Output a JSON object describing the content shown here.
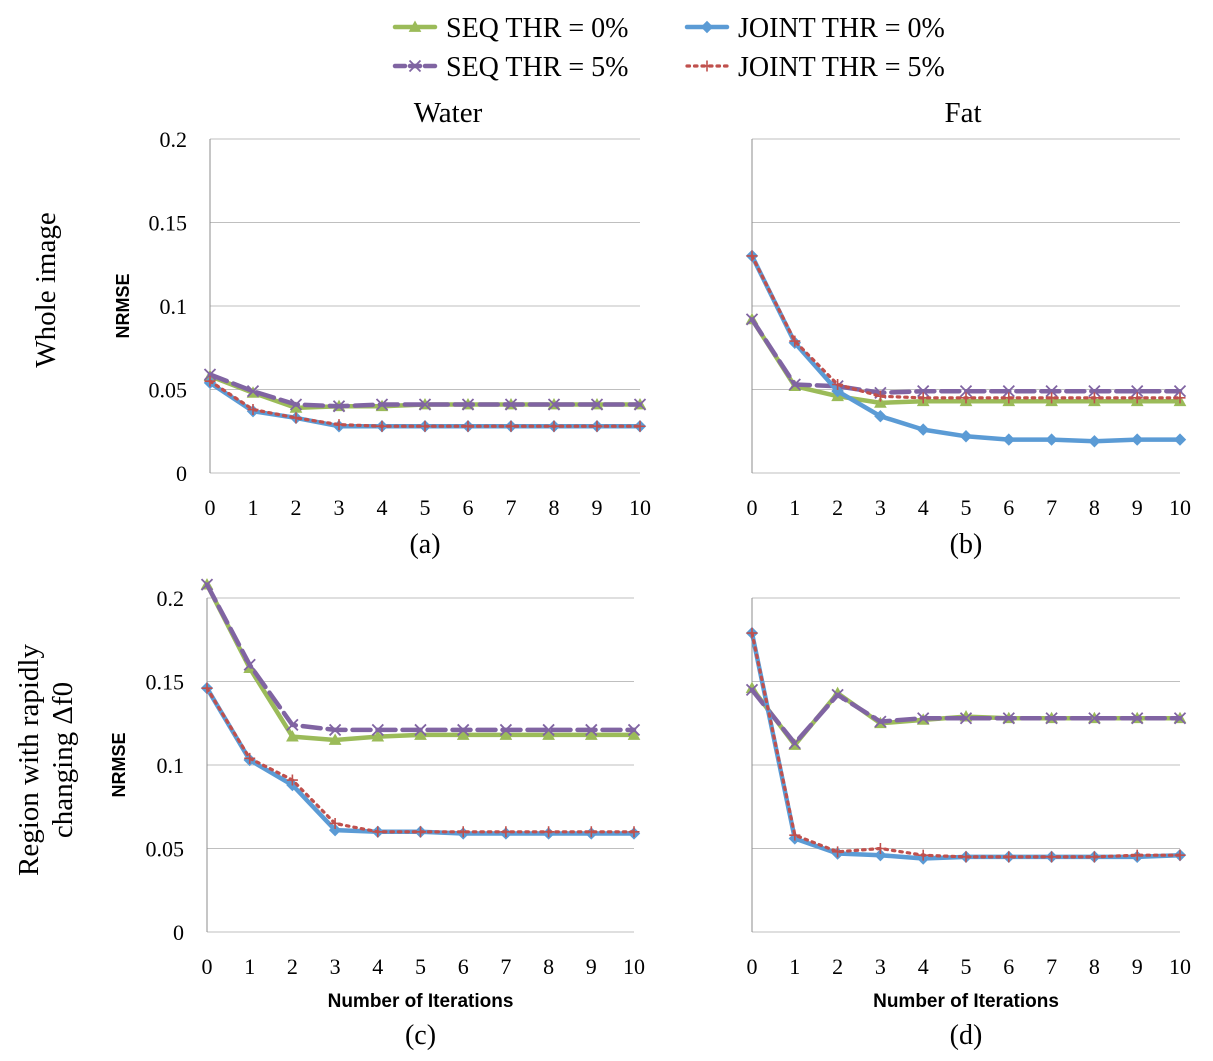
{
  "legend": {
    "entries": [
      {
        "label": "SEQ THR = 0%",
        "color": "#9bbb59",
        "marker": "triangle",
        "dash": "solid"
      },
      {
        "label": "JOINT THR = 0%",
        "color": "#5b9bd5",
        "marker": "diamond",
        "dash": "solid"
      },
      {
        "label": "SEQ THR = 5%",
        "color": "#8064a2",
        "marker": "x",
        "dash": "dashed"
      },
      {
        "label": "JOINT THR = 5%",
        "color": "#c0504d",
        "marker": "plus",
        "dash": "dotted"
      }
    ]
  },
  "column_titles": [
    "Water",
    "Fat"
  ],
  "row_labels": [
    [
      "Whole image"
    ],
    [
      "Region with rapidly",
      "changing Δf0"
    ]
  ],
  "chart_data": [
    {
      "type": "line",
      "panel_label": "(a)",
      "column": "Water",
      "row": "Whole image",
      "xlabel": "",
      "ylabel": "NRMSE",
      "x": [
        0,
        1,
        2,
        3,
        4,
        5,
        6,
        7,
        8,
        9,
        10
      ],
      "ylim": [
        0,
        0.2
      ],
      "yticks": [
        "0",
        "0.05",
        "0.1",
        "0.15",
        "0.2"
      ],
      "series": [
        {
          "name": "SEQ THR = 0%",
          "values": [
            0.058,
            0.048,
            0.039,
            0.04,
            0.04,
            0.041,
            0.041,
            0.041,
            0.041,
            0.041,
            0.041
          ]
        },
        {
          "name": "SEQ THR = 5%",
          "values": [
            0.059,
            0.049,
            0.041,
            0.04,
            0.041,
            0.041,
            0.041,
            0.041,
            0.041,
            0.041,
            0.041
          ]
        },
        {
          "name": "JOINT THR = 0%",
          "values": [
            0.054,
            0.037,
            0.033,
            0.028,
            0.028,
            0.028,
            0.028,
            0.028,
            0.028,
            0.028,
            0.028
          ]
        },
        {
          "name": "JOINT THR = 5%",
          "values": [
            0.055,
            0.038,
            0.033,
            0.029,
            0.028,
            0.028,
            0.028,
            0.028,
            0.028,
            0.028,
            0.028
          ]
        }
      ]
    },
    {
      "type": "line",
      "panel_label": "(b)",
      "column": "Fat",
      "row": "Whole image",
      "xlabel": "",
      "ylabel": "",
      "x": [
        0,
        1,
        2,
        3,
        4,
        5,
        6,
        7,
        8,
        9,
        10
      ],
      "ylim": [
        0,
        0.2
      ],
      "yticks": [],
      "series": [
        {
          "name": "SEQ THR = 0%",
          "values": [
            0.092,
            0.052,
            0.046,
            0.042,
            0.043,
            0.043,
            0.043,
            0.043,
            0.043,
            0.043,
            0.043
          ]
        },
        {
          "name": "SEQ THR = 5%",
          "values": [
            0.092,
            0.053,
            0.052,
            0.048,
            0.049,
            0.049,
            0.049,
            0.049,
            0.049,
            0.049,
            0.049
          ]
        },
        {
          "name": "JOINT THR = 0%",
          "values": [
            0.13,
            0.078,
            0.049,
            0.034,
            0.026,
            0.022,
            0.02,
            0.02,
            0.019,
            0.02,
            0.02
          ]
        },
        {
          "name": "JOINT THR = 5%",
          "values": [
            0.13,
            0.079,
            0.053,
            0.046,
            0.045,
            0.045,
            0.045,
            0.045,
            0.045,
            0.045,
            0.045
          ]
        }
      ]
    },
    {
      "type": "line",
      "panel_label": "(c)",
      "column": "Water",
      "row": "Region with rapidly changing Δf0",
      "xlabel": "Number of Iterations",
      "ylabel": "NRMSE",
      "x": [
        0,
        1,
        2,
        3,
        4,
        5,
        6,
        7,
        8,
        9,
        10
      ],
      "ylim": [
        0,
        0.2
      ],
      "yticks": [
        "0",
        "0.05",
        "0.1",
        "0.15",
        "0.2"
      ],
      "series": [
        {
          "name": "SEQ THR = 0%",
          "values": [
            0.208,
            0.158,
            0.117,
            0.115,
            0.117,
            0.118,
            0.118,
            0.118,
            0.118,
            0.118,
            0.118
          ]
        },
        {
          "name": "SEQ THR = 5%",
          "values": [
            0.208,
            0.16,
            0.124,
            0.121,
            0.121,
            0.121,
            0.121,
            0.121,
            0.121,
            0.121,
            0.121
          ]
        },
        {
          "name": "JOINT THR = 0%",
          "values": [
            0.146,
            0.103,
            0.088,
            0.061,
            0.06,
            0.06,
            0.059,
            0.059,
            0.059,
            0.059,
            0.059
          ]
        },
        {
          "name": "JOINT THR = 5%",
          "values": [
            0.146,
            0.104,
            0.091,
            0.065,
            0.06,
            0.06,
            0.06,
            0.06,
            0.06,
            0.06,
            0.06
          ]
        }
      ]
    },
    {
      "type": "line",
      "panel_label": "(d)",
      "column": "Fat",
      "row": "Region with rapidly changing Δf0",
      "xlabel": "Number of Iterations",
      "ylabel": "",
      "x": [
        0,
        1,
        2,
        3,
        4,
        5,
        6,
        7,
        8,
        9,
        10
      ],
      "ylim": [
        0,
        0.2
      ],
      "yticks": [],
      "series": [
        {
          "name": "SEQ THR = 0%",
          "values": [
            0.146,
            0.112,
            0.143,
            0.125,
            0.127,
            0.129,
            0.128,
            0.128,
            0.128,
            0.128,
            0.128
          ]
        },
        {
          "name": "SEQ THR = 5%",
          "values": [
            0.145,
            0.113,
            0.142,
            0.126,
            0.128,
            0.128,
            0.128,
            0.128,
            0.128,
            0.128,
            0.128
          ]
        },
        {
          "name": "JOINT THR = 0%",
          "values": [
            0.179,
            0.056,
            0.047,
            0.046,
            0.044,
            0.045,
            0.045,
            0.045,
            0.045,
            0.045,
            0.046
          ]
        },
        {
          "name": "JOINT THR = 5%",
          "values": [
            0.179,
            0.058,
            0.048,
            0.05,
            0.046,
            0.045,
            0.045,
            0.045,
            0.045,
            0.046,
            0.046
          ]
        }
      ]
    }
  ]
}
